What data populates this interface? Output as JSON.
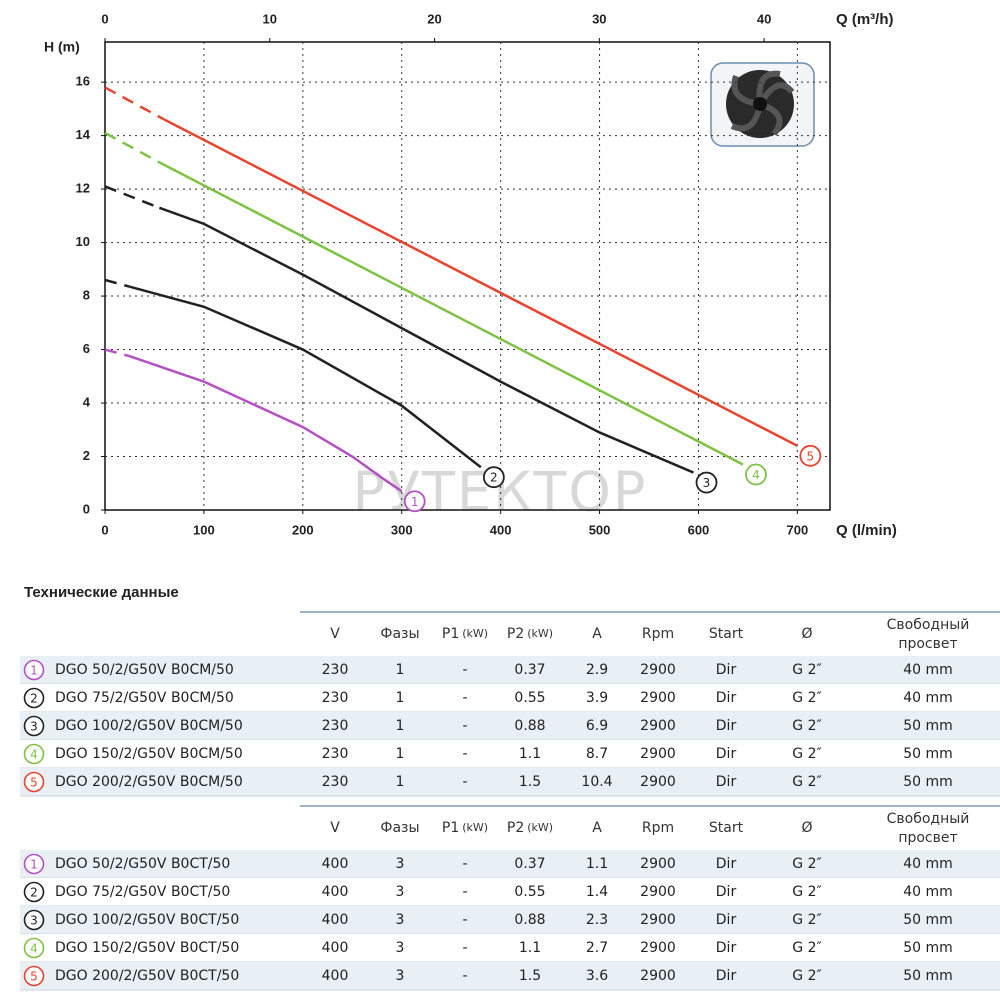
{
  "chart_data": {
    "type": "line",
    "y_label": "H (m)",
    "x_label": "Q (l/min)",
    "x2_label": "Q (m³/h)",
    "watermark": "РУТЕКТОР",
    "xlim": [
      0,
      733
    ],
    "xticks": [
      0,
      100,
      200,
      300,
      400,
      500,
      600,
      700
    ],
    "x2lim": [
      0,
      44
    ],
    "x2ticks": [
      0,
      10,
      20,
      30,
      40
    ],
    "ylim": [
      0,
      17.5
    ],
    "yticks": [
      0,
      2,
      4,
      6,
      8,
      10,
      12,
      14,
      16
    ],
    "grid": true,
    "series": [
      {
        "name": "1",
        "color": "#b54fc4",
        "x": [
          0,
          25,
          100,
          200,
          250,
          280,
          300
        ],
        "values": [
          6.0,
          5.75,
          4.8,
          3.1,
          2.0,
          1.2,
          0.7
        ]
      },
      {
        "name": "2",
        "color": "#222222",
        "x": [
          0,
          25,
          100,
          200,
          300,
          380
        ],
        "values": [
          8.6,
          8.35,
          7.6,
          6.0,
          3.9,
          1.6
        ]
      },
      {
        "name": "3",
        "color": "#222222",
        "x": [
          0,
          55,
          100,
          200,
          300,
          400,
          500,
          595
        ],
        "values": [
          12.1,
          11.3,
          10.7,
          8.8,
          6.8,
          4.8,
          2.9,
          1.4
        ]
      },
      {
        "name": "4",
        "color": "#7dc242",
        "x": [
          0,
          55,
          645
        ],
        "values": [
          14.1,
          13.0,
          1.7
        ]
      },
      {
        "name": "5",
        "color": "#e8432e",
        "x": [
          0,
          60,
          700
        ],
        "values": [
          15.8,
          14.6,
          2.4
        ]
      }
    ]
  },
  "section_title": "Технические данные",
  "tables": [
    {
      "header": [
        "V",
        "Фазы",
        {
          "text": "P1",
          "unit": "(kW)"
        },
        {
          "text": "P2",
          "unit": "(kW)"
        },
        "A",
        "Rpm",
        "Start",
        "Ø",
        [
          "Свободный",
          "просвет"
        ]
      ],
      "rows": [
        {
          "num": "1",
          "model": "DGO 50/2/G50V B0CM/50",
          "cells": [
            "230",
            "1",
            "-",
            "0.37",
            "2.9",
            "2900",
            "Dir",
            "G 2″",
            "40 mm"
          ]
        },
        {
          "num": "2",
          "model": "DGO 75/2/G50V B0CM/50",
          "cells": [
            "230",
            "1",
            "-",
            "0.55",
            "3.9",
            "2900",
            "Dir",
            "G 2″",
            "40 mm"
          ]
        },
        {
          "num": "3",
          "model": "DGO 100/2/G50V B0CM/50",
          "cells": [
            "230",
            "1",
            "-",
            "0.88",
            "6.9",
            "2900",
            "Dir",
            "G 2″",
            "50 mm"
          ]
        },
        {
          "num": "4",
          "model": "DGO 150/2/G50V B0CM/50",
          "cells": [
            "230",
            "1",
            "-",
            "1.1",
            "8.7",
            "2900",
            "Dir",
            "G 2″",
            "50 mm"
          ]
        },
        {
          "num": "5",
          "model": "DGO 200/2/G50V B0CM/50",
          "cells": [
            "230",
            "1",
            "-",
            "1.5",
            "10.4",
            "2900",
            "Dir",
            "G 2″",
            "50 mm"
          ]
        }
      ]
    },
    {
      "header": [
        "V",
        "Фазы",
        {
          "text": "P1",
          "unit": "(kW)"
        },
        {
          "text": "P2",
          "unit": "(kW)"
        },
        "A",
        "Rpm",
        "Start",
        "Ø",
        [
          "Свободный",
          "просвет"
        ]
      ],
      "rows": [
        {
          "num": "1",
          "model": "DGO 50/2/G50V B0CT/50",
          "cells": [
            "400",
            "3",
            "-",
            "0.37",
            "1.1",
            "2900",
            "Dir",
            "G 2″",
            "40 mm"
          ]
        },
        {
          "num": "2",
          "model": "DGO 75/2/G50V B0CT/50",
          "cells": [
            "400",
            "3",
            "-",
            "0.55",
            "1.4",
            "2900",
            "Dir",
            "G 2″",
            "40 mm"
          ]
        },
        {
          "num": "3",
          "model": "DGO 100/2/G50V B0CT/50",
          "cells": [
            "400",
            "3",
            "-",
            "0.88",
            "2.3",
            "2900",
            "Dir",
            "G 2″",
            "50 mm"
          ]
        },
        {
          "num": "4",
          "model": "DGO 150/2/G50V B0CT/50",
          "cells": [
            "400",
            "3",
            "-",
            "1.1",
            "2.7",
            "2900",
            "Dir",
            "G 2″",
            "50 mm"
          ]
        },
        {
          "num": "5",
          "model": "DGO 200/2/G50V B0CT/50",
          "cells": [
            "400",
            "3",
            "-",
            "1.5",
            "3.6",
            "2900",
            "Dir",
            "G 2″",
            "50 mm"
          ]
        }
      ]
    }
  ]
}
